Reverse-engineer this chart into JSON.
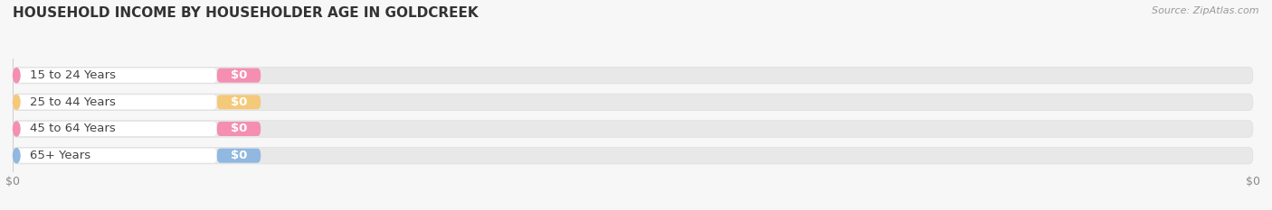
{
  "title": "HOUSEHOLD INCOME BY HOUSEHOLDER AGE IN GOLDCREEK",
  "source": "Source: ZipAtlas.com",
  "categories": [
    "15 to 24 Years",
    "25 to 44 Years",
    "45 to 64 Years",
    "65+ Years"
  ],
  "values": [
    0,
    0,
    0,
    0
  ],
  "bar_colors": [
    "#f48fb1",
    "#f5c97a",
    "#f48fb1",
    "#90b8e0"
  ],
  "background_color": "#f7f7f7",
  "title_fontsize": 11,
  "label_fontsize": 9.5,
  "tick_fontsize": 9,
  "value_label": "$0",
  "x_tick_labels": [
    "$0",
    "$0"
  ],
  "pill_bg": "#e8e8e8",
  "pill_white": "#ffffff",
  "text_color": "#444444",
  "source_color": "#999999"
}
